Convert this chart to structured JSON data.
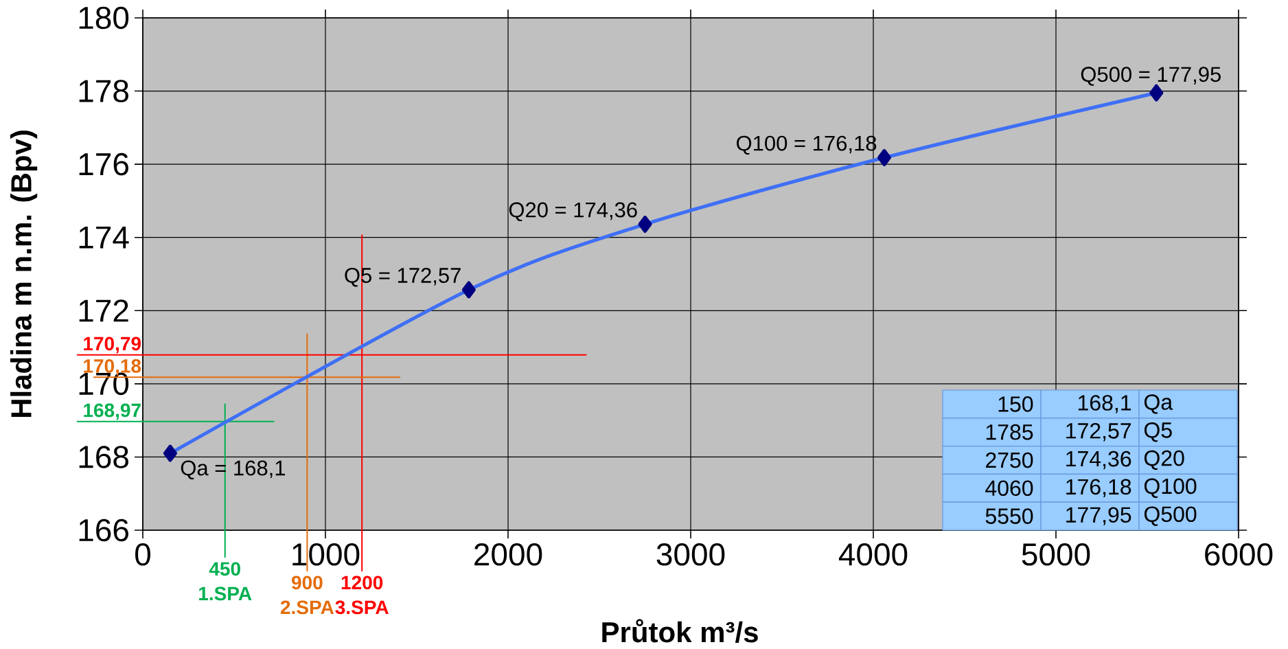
{
  "chart_data": {
    "type": "line",
    "xlabel": "Průtok m³/s",
    "ylabel": "Hladina m n.m. (Bpv)",
    "x": [
      150,
      1785,
      2750,
      4060,
      5550
    ],
    "series": [
      {
        "color": "#3f6ff5",
        "values": [
          168.1,
          172.57,
          174.36,
          176.18,
          177.95
        ]
      }
    ],
    "marker": "diamond",
    "grid": true,
    "xlim": [
      0,
      6000
    ],
    "ylim": [
      166,
      180
    ],
    "xticks": [
      0,
      1000,
      2000,
      3000,
      4000,
      5000,
      6000
    ],
    "yticks": [
      166,
      168,
      170,
      172,
      174,
      176,
      178,
      180
    ],
    "ref_lines": [
      {
        "axis": "x",
        "value": 450,
        "label": "450",
        "color": "#00b050"
      },
      {
        "axis": "x",
        "value": 900,
        "label": "900",
        "color": "#e46c0a"
      },
      {
        "axis": "x",
        "value": 1200,
        "label": "1200",
        "color": "#ff0000"
      },
      {
        "axis": "y",
        "value": 168.97,
        "label": "168,97",
        "color": "#00b050"
      },
      {
        "axis": "y",
        "value": 170.18,
        "label": "170,18",
        "color": "#e46c0a"
      },
      {
        "axis": "y",
        "value": 170.79,
        "label": "170,79",
        "color": "#ff0000"
      }
    ],
    "annotations": [
      {
        "text": "Qa = 168,1",
        "x": 150,
        "y": 168.1
      },
      {
        "text": "Q5 = 172,57",
        "x": 1785,
        "y": 172.57
      },
      {
        "text": "Q20 = 174,36",
        "x": 2750,
        "y": 174.36
      },
      {
        "text": "Q100 = 176,18",
        "x": 4060,
        "y": 176.18
      },
      {
        "text": "Q500 = 177,95",
        "x": 5550,
        "y": 177.95
      },
      "1.SPA",
      "2.SPA",
      "3.SPA",
      "150",
      "168,1",
      "Qa",
      "1785",
      "172,57",
      "Q5",
      "2750",
      "174,36",
      "Q20",
      "4060",
      "176,18",
      "Q100",
      "5550",
      "177,95",
      "Q500"
    ]
  }
}
